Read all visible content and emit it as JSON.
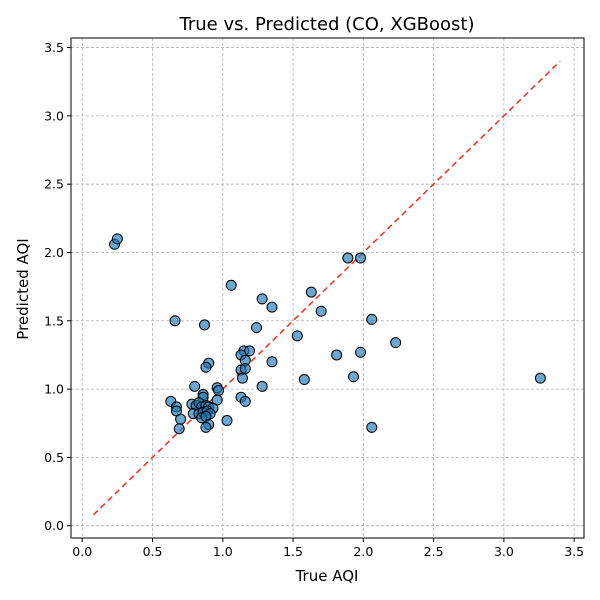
{
  "chart_data": {
    "type": "scatter",
    "title": "True vs. Predicted (CO, XGBoost)",
    "xlabel": "True AQI",
    "ylabel": "Predicted AQI",
    "xlim": [
      -0.08,
      3.57
    ],
    "ylim": [
      -0.09,
      3.57
    ],
    "xticks": [
      0.0,
      0.5,
      1.0,
      1.5,
      2.0,
      2.5,
      3.0,
      3.5
    ],
    "yticks": [
      0.0,
      0.5,
      1.0,
      1.5,
      2.0,
      2.5,
      3.0,
      3.5
    ],
    "xtick_labels": [
      "0.0",
      "0.5",
      "1.0",
      "1.5",
      "2.0",
      "2.5",
      "3.0",
      "3.5"
    ],
    "ytick_labels": [
      "0.0",
      "0.5",
      "1.0",
      "1.5",
      "2.0",
      "2.5",
      "3.0",
      "3.5"
    ],
    "grid": true,
    "identity_line": {
      "from": [
        0.08,
        0.08
      ],
      "to": [
        3.4,
        3.4
      ],
      "color": "#e03c31",
      "style": "dashed"
    },
    "point_color": "#1f77b4",
    "point_edge_color": "#000000",
    "points": [
      {
        "x": 0.23,
        "y": 2.06
      },
      {
        "x": 0.25,
        "y": 2.1
      },
      {
        "x": 0.66,
        "y": 1.5
      },
      {
        "x": 1.06,
        "y": 1.76
      },
      {
        "x": 1.28,
        "y": 1.66
      },
      {
        "x": 1.35,
        "y": 1.6
      },
      {
        "x": 1.63,
        "y": 1.71
      },
      {
        "x": 1.7,
        "y": 1.57
      },
      {
        "x": 1.89,
        "y": 1.96
      },
      {
        "x": 1.98,
        "y": 1.96
      },
      {
        "x": 2.06,
        "y": 1.51
      },
      {
        "x": 0.87,
        "y": 1.47
      },
      {
        "x": 1.24,
        "y": 1.45
      },
      {
        "x": 1.53,
        "y": 1.39
      },
      {
        "x": 2.23,
        "y": 1.34
      },
      {
        "x": 1.15,
        "y": 1.28
      },
      {
        "x": 1.19,
        "y": 1.28
      },
      {
        "x": 1.13,
        "y": 1.25
      },
      {
        "x": 1.81,
        "y": 1.25
      },
      {
        "x": 1.98,
        "y": 1.27
      },
      {
        "x": 0.9,
        "y": 1.19
      },
      {
        "x": 1.16,
        "y": 1.21
      },
      {
        "x": 1.35,
        "y": 1.2
      },
      {
        "x": 0.88,
        "y": 1.16
      },
      {
        "x": 1.13,
        "y": 1.14
      },
      {
        "x": 1.16,
        "y": 1.15
      },
      {
        "x": 1.14,
        "y": 1.08
      },
      {
        "x": 1.58,
        "y": 1.07
      },
      {
        "x": 1.93,
        "y": 1.09
      },
      {
        "x": 3.26,
        "y": 1.08
      },
      {
        "x": 0.8,
        "y": 1.02
      },
      {
        "x": 0.96,
        "y": 1.01
      },
      {
        "x": 0.97,
        "y": 0.99
      },
      {
        "x": 1.28,
        "y": 1.02
      },
      {
        "x": 1.13,
        "y": 0.94
      },
      {
        "x": 0.86,
        "y": 0.96
      },
      {
        "x": 0.86,
        "y": 0.94
      },
      {
        "x": 0.96,
        "y": 0.92
      },
      {
        "x": 1.16,
        "y": 0.91
      },
      {
        "x": 0.63,
        "y": 0.91
      },
      {
        "x": 0.67,
        "y": 0.87
      },
      {
        "x": 0.67,
        "y": 0.84
      },
      {
        "x": 0.78,
        "y": 0.89
      },
      {
        "x": 0.81,
        "y": 0.88
      },
      {
        "x": 0.83,
        "y": 0.9
      },
      {
        "x": 0.85,
        "y": 0.87
      },
      {
        "x": 0.88,
        "y": 0.88
      },
      {
        "x": 0.9,
        "y": 0.87
      },
      {
        "x": 0.93,
        "y": 0.86
      },
      {
        "x": 0.79,
        "y": 0.82
      },
      {
        "x": 0.83,
        "y": 0.82
      },
      {
        "x": 0.86,
        "y": 0.83
      },
      {
        "x": 0.89,
        "y": 0.84
      },
      {
        "x": 0.91,
        "y": 0.82
      },
      {
        "x": 0.85,
        "y": 0.79
      },
      {
        "x": 0.88,
        "y": 0.8
      },
      {
        "x": 0.7,
        "y": 0.78
      },
      {
        "x": 1.03,
        "y": 0.77
      },
      {
        "x": 0.9,
        "y": 0.74
      },
      {
        "x": 0.88,
        "y": 0.72
      },
      {
        "x": 0.69,
        "y": 0.71
      },
      {
        "x": 2.06,
        "y": 0.72
      }
    ]
  }
}
